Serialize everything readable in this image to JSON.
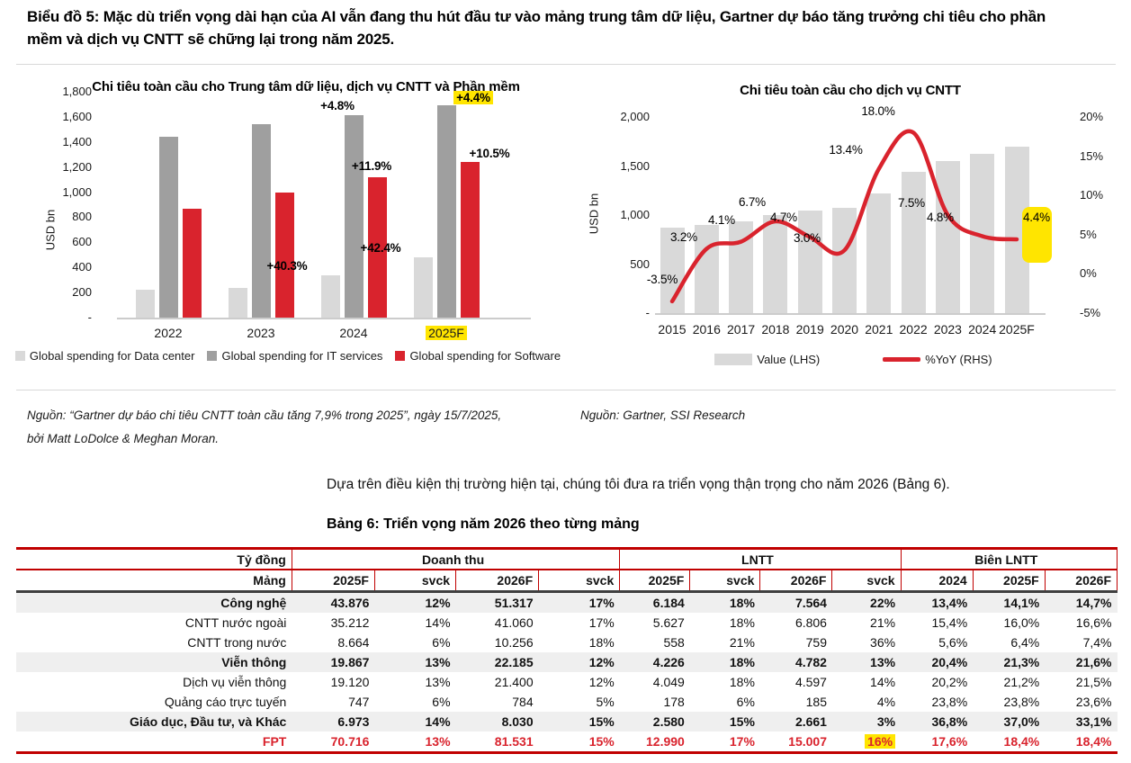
{
  "page": {
    "caption_line1": "Biểu đồ 5: Mặc dù triển vọng dài hạn của AI vẫn đang thu hút đầu tư vào mảng trung tâm dữ liệu, Gartner dự báo tăng trưởng chi tiêu cho phần",
    "caption_line2": "mềm và dịch vụ CNTT sẽ chững lại trong năm 2025.",
    "source_left_line1": "Nguồn: “Gartner dự báo chi tiêu CNTT toàn cầu tăng 7,9% trong 2025”, ngày 15/7/2025,",
    "source_left_line2": "bởi Matt LoDolce & Meghan Moran.",
    "source_right": "Nguồn: Gartner, SSI Research",
    "paragraph": "Dựa trên điều kiện thị trường hiện tại, chúng tôi đưa ra triển vọng thận trọng cho năm 2026 (Bảng 6).",
    "table_title": "Bảng 6: Triển vọng năm 2026 theo từng mảng"
  },
  "colors": {
    "accent_red": "#d9232d",
    "border_red": "#c00000",
    "highlight_yellow": "#ffe500",
    "bar_light": "#d9d9d9",
    "bar_dark": "#9f9f9f",
    "shaded_row": "#efefef",
    "dark_rule": "#3f3f3f"
  },
  "chart_data": [
    {
      "type": "bar",
      "title": "Chi tiêu toàn cầu cho Trung tâm dữ liệu, dịch vụ CNTT và Phần mềm",
      "ylabel": "USD bn",
      "ylim": [
        0,
        1800
      ],
      "grid": false,
      "legend_position": "bottom",
      "y_ticks": [
        {
          "label": "1,800",
          "value": 1800
        },
        {
          "label": "1,600",
          "value": 1600
        },
        {
          "label": "1,400",
          "value": 1400
        },
        {
          "label": "1,200",
          "value": 1200
        },
        {
          "label": "1,000",
          "value": 1000
        },
        {
          "label": "800",
          "value": 800
        },
        {
          "label": "600",
          "value": 600
        },
        {
          "label": "400",
          "value": 400
        },
        {
          "label": "200",
          "value": 200
        },
        {
          "label": "-",
          "value": 0
        }
      ],
      "categories": [
        "2022",
        "2023",
        "2024",
        "2025F"
      ],
      "highlight_category": "2025F",
      "series": [
        {
          "name": "Global spending for Data center",
          "color": "#d9d9d9",
          "values": [
            225,
            240,
            335,
            480
          ]
        },
        {
          "name": "Global spending for IT services",
          "color": "#9f9f9f",
          "values": [
            1440,
            1545,
            1615,
            1690
          ]
        },
        {
          "name": "Global spending for Software",
          "color": "#d9232d",
          "values": [
            870,
            1000,
            1120,
            1240
          ]
        }
      ],
      "annotations": [
        {
          "text": "+4.8%",
          "x": 375,
          "y": 39,
          "highlight": false
        },
        {
          "text": "+11.9%",
          "x": 413,
          "y": 106,
          "highlight": false
        },
        {
          "text": "+40.3%",
          "x": 319,
          "y": 217,
          "highlight": false
        },
        {
          "text": "+42.4%",
          "x": 423,
          "y": 197,
          "highlight": false
        },
        {
          "text": "+4.4%",
          "x": 526,
          "y": 30,
          "highlight": true
        },
        {
          "text": "+10.5%",
          "x": 544,
          "y": 92,
          "highlight": false
        }
      ]
    },
    {
      "type": "bar+line",
      "title": "Chi tiêu toàn cầu cho dịch vụ CNTT",
      "ylabel": "USD bn",
      "ylim_left": [
        0,
        2000
      ],
      "ylim_right": [
        -5,
        20
      ],
      "grid": false,
      "legend_position": "bottom",
      "left_ticks": [
        {
          "label": "2,000",
          "value": 2000
        },
        {
          "label": "1,500",
          "value": 1500
        },
        {
          "label": "1,000",
          "value": 1000
        },
        {
          "label": "500",
          "value": 500
        },
        {
          "label": "-",
          "value": 0
        }
      ],
      "right_ticks": [
        {
          "label": "20%",
          "value": 20
        },
        {
          "label": "15%",
          "value": 15
        },
        {
          "label": "10%",
          "value": 10
        },
        {
          "label": "5%",
          "value": 5
        },
        {
          "label": "0%",
          "value": 0
        },
        {
          "label": "-5%",
          "value": -5
        }
      ],
      "x": [
        "2015",
        "2016",
        "2017",
        "2018",
        "2019",
        "2020",
        "2021",
        "2022",
        "2023",
        "2024",
        "2025F"
      ],
      "series": [
        {
          "name": "Value (LHS)",
          "type": "bar",
          "color": "#d9d9d9",
          "values": [
            870,
            898,
            935,
            998,
            1045,
            1076,
            1220,
            1440,
            1548,
            1622,
            1693
          ]
        },
        {
          "name": "%YoY (RHS)",
          "type": "line",
          "color": "#d9232d",
          "values": [
            -3.5,
            3.2,
            4.1,
            6.7,
            4.7,
            3.0,
            13.4,
            18.0,
            7.5,
            4.8,
            4.4
          ]
        }
      ],
      "point_labels": [
        "-3.5%",
        "3.2%",
        "4.1%",
        "6.7%",
        "4.7%",
        "3.0%",
        "13.4%",
        "18.0%",
        "7.5%",
        "4.8%",
        "4.4%"
      ],
      "point_label_pos": [
        [
          96,
          232
        ],
        [
          120,
          185
        ],
        [
          162,
          166
        ],
        [
          196,
          146
        ],
        [
          231,
          163
        ],
        [
          257,
          186
        ],
        [
          300,
          88
        ],
        [
          336,
          45
        ],
        [
          373,
          147
        ],
        [
          405,
          163
        ],
        [
          512,
          163
        ]
      ],
      "highlight_label_index": 10,
      "highlight_patch": {
        "x": 496,
        "y": 150,
        "w": 33,
        "h": 62
      }
    }
  ],
  "table": {
    "unit_label": "Tỷ đồng",
    "groups": [
      {
        "label": "Doanh thu",
        "span": 4
      },
      {
        "label": "LNTT",
        "span": 4
      },
      {
        "label": "Biên LNTT",
        "span": 3
      }
    ],
    "col_headers": [
      "Mảng",
      "2025F",
      "svck",
      "2026F",
      "svck",
      "2025F",
      "svck",
      "2026F",
      "svck",
      "2024",
      "2025F",
      "2026F"
    ],
    "rows": [
      {
        "label": "Công nghệ",
        "bold": true,
        "shaded": true,
        "indent": false,
        "red": false,
        "values": [
          "43.876",
          "12%",
          "51.317",
          "17%",
          "6.184",
          "18%",
          "7.564",
          "22%",
          "13,4%",
          "14,1%",
          "14,7%"
        ]
      },
      {
        "label": "CNTT nước ngoài",
        "bold": false,
        "shaded": false,
        "indent": true,
        "red": false,
        "values": [
          "35.212",
          "14%",
          "41.060",
          "17%",
          "5.627",
          "18%",
          "6.806",
          "21%",
          "15,4%",
          "16,0%",
          "16,6%"
        ]
      },
      {
        "label": "CNTT trong nước",
        "bold": false,
        "shaded": false,
        "indent": true,
        "red": false,
        "values": [
          "8.664",
          "6%",
          "10.256",
          "18%",
          "558",
          "21%",
          "759",
          "36%",
          "5,6%",
          "6,4%",
          "7,4%"
        ]
      },
      {
        "label": "Viễn thông",
        "bold": true,
        "shaded": true,
        "indent": false,
        "red": false,
        "values": [
          "19.867",
          "13%",
          "22.185",
          "12%",
          "4.226",
          "18%",
          "4.782",
          "13%",
          "20,4%",
          "21,3%",
          "21,6%"
        ]
      },
      {
        "label": "Dịch vụ viễn thông",
        "bold": false,
        "shaded": false,
        "indent": true,
        "red": false,
        "values": [
          "19.120",
          "13%",
          "21.400",
          "12%",
          "4.049",
          "18%",
          "4.597",
          "14%",
          "20,2%",
          "21,2%",
          "21,5%"
        ]
      },
      {
        "label": "Quảng cáo trực tuyến",
        "bold": false,
        "shaded": false,
        "indent": true,
        "red": false,
        "values": [
          "747",
          "6%",
          "784",
          "5%",
          "178",
          "6%",
          "185",
          "4%",
          "23,8%",
          "23,8%",
          "23,6%"
        ]
      },
      {
        "label": "Giáo dục, Đầu tư, và Khác",
        "bold": true,
        "shaded": true,
        "indent": false,
        "red": false,
        "values": [
          "6.973",
          "14%",
          "8.030",
          "15%",
          "2.580",
          "15%",
          "2.661",
          "3%",
          "36,8%",
          "37,0%",
          "33,1%"
        ]
      },
      {
        "label": "FPT",
        "bold": true,
        "shaded": false,
        "indent": false,
        "red": true,
        "highlight_index": 7,
        "values": [
          "70.716",
          "13%",
          "81.531",
          "15%",
          "12.990",
          "17%",
          "15.007",
          "16%",
          "17,6%",
          "18,4%",
          "18,4%"
        ]
      }
    ]
  }
}
